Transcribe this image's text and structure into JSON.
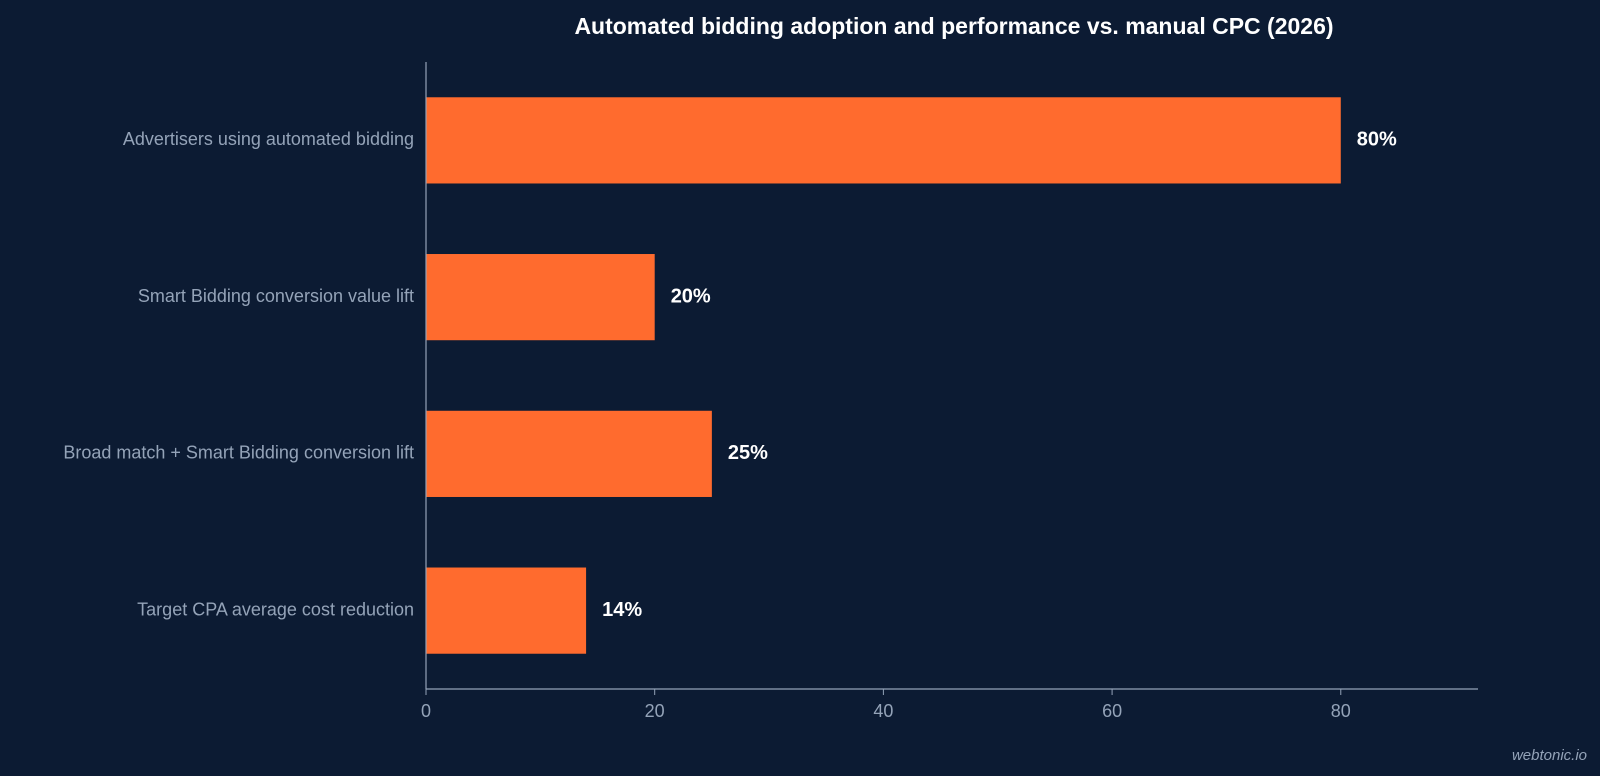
{
  "chart_data": {
    "type": "bar",
    "orientation": "horizontal",
    "title": "Automated bidding adoption and performance vs. manual CPC (2026)",
    "categories": [
      "Advertisers using automated bidding",
      "Smart Bidding conversion value lift",
      "Broad match + Smart Bidding conversion lift",
      "Target CPA average cost reduction"
    ],
    "values": [
      80,
      20,
      25,
      14
    ],
    "value_labels": [
      "80%",
      "20%",
      "25%",
      "14%"
    ],
    "xlabel": "",
    "ylabel": "",
    "xlim": [
      0,
      92
    ],
    "xticks": [
      0,
      20,
      40,
      60,
      80
    ],
    "grid": false,
    "legend": "none"
  },
  "watermark": "webtonic.io",
  "colors": {
    "background": "#0c1b33",
    "bar": "#ff6b2e",
    "axis": "#94a3b8",
    "label": "#94a3b8",
    "title": "#ffffff",
    "value_label": "#ffffff"
  }
}
